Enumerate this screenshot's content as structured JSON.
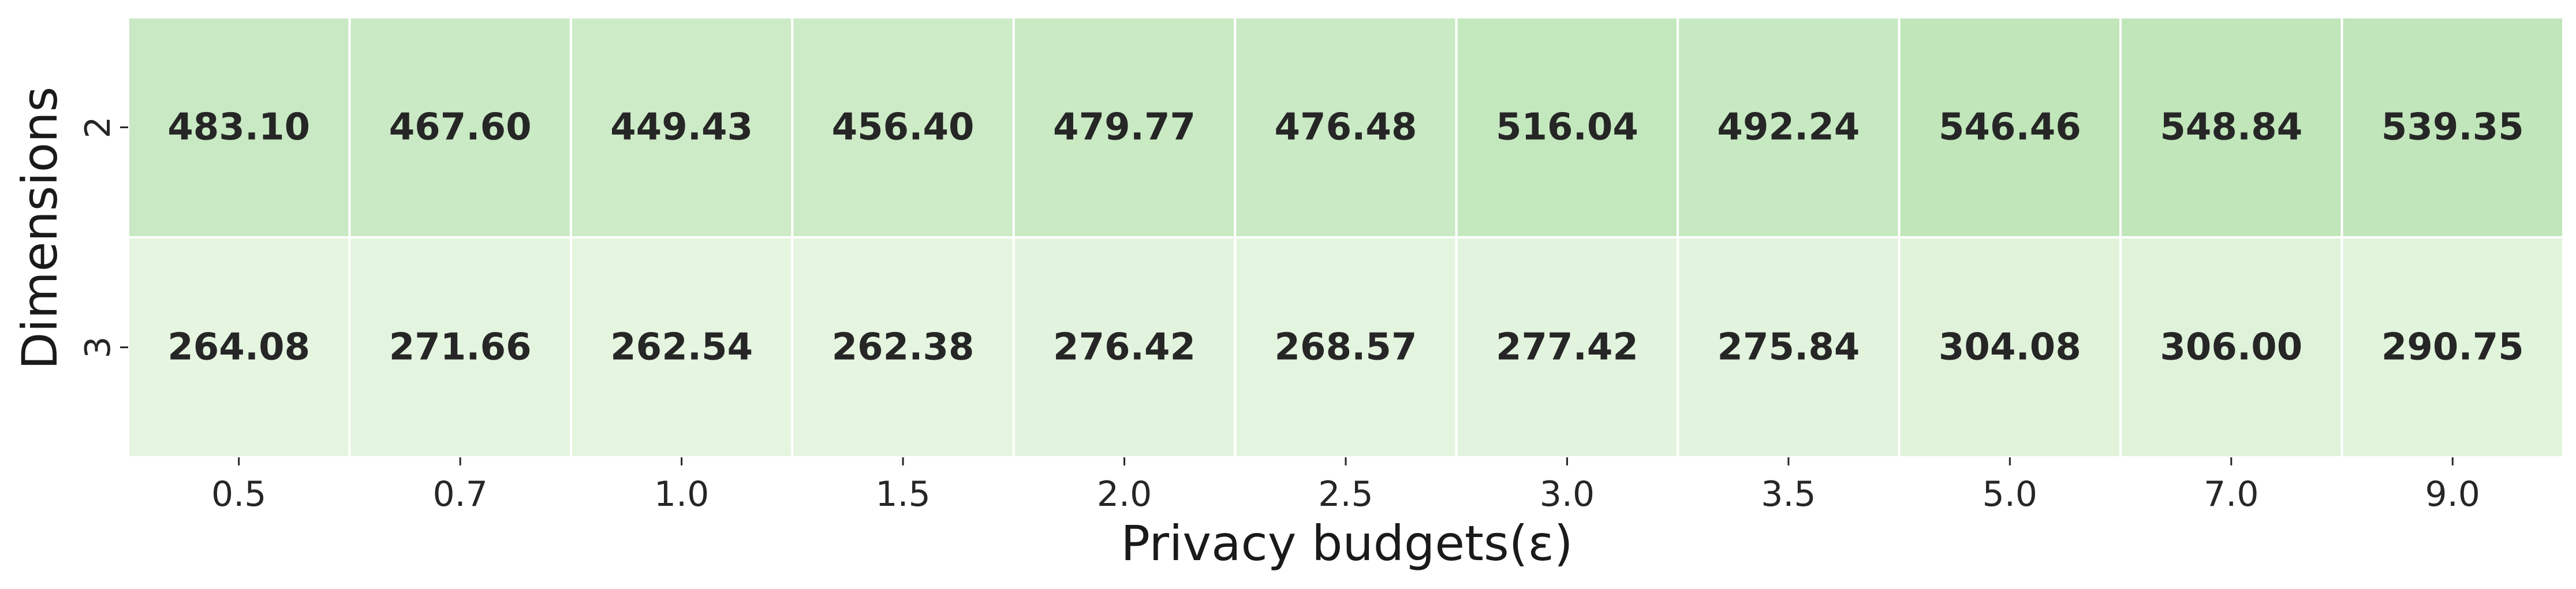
{
  "chart_data": {
    "type": "heatmap",
    "title": "",
    "xlabel": "Privacy budgets(ε)",
    "ylabel": "Dimensions",
    "x": [
      "0.5",
      "0.7",
      "1.0",
      "1.5",
      "2.0",
      "2.5",
      "3.0",
      "3.5",
      "5.0",
      "7.0",
      "9.0"
    ],
    "y": [
      "2",
      "3"
    ],
    "values": [
      [
        483.1,
        467.6,
        449.43,
        456.4,
        479.77,
        476.48,
        516.04,
        492.24,
        546.46,
        548.84,
        539.35
      ],
      [
        264.08,
        271.66,
        262.54,
        262.38,
        276.42,
        268.57,
        277.42,
        275.84,
        304.08,
        306.0,
        290.75
      ]
    ],
    "value_labels": [
      [
        "483.10",
        "467.60",
        "449.43",
        "456.40",
        "479.77",
        "476.48",
        "516.04",
        "492.24",
        "546.46",
        "548.84",
        "539.35"
      ],
      [
        "264.08",
        "271.66",
        "262.54",
        "262.38",
        "276.42",
        "268.57",
        "277.42",
        "275.84",
        "304.08",
        "306.00",
        "290.75"
      ]
    ],
    "colormap": {
      "low": "#e5f5e0",
      "high": "#c0e6ba"
    },
    "grid_color": "#ffffff",
    "text_color": "#262626"
  }
}
